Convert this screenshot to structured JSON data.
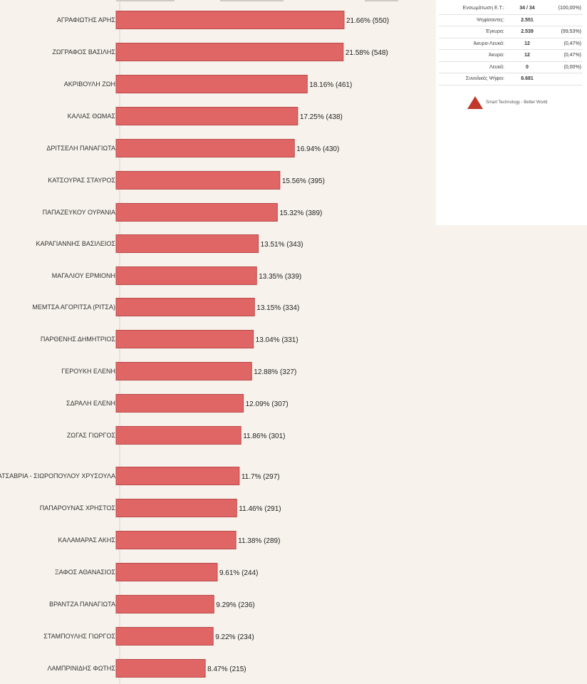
{
  "chart_data": {
    "type": "bar",
    "orientation": "horizontal",
    "categories": [
      "ΑΓΡΑΦΙΩΤΗΣ ΑΡΗΣ",
      "ΖΩΓΡΑΦΟΣ ΒΑΣΙΛΗΣ",
      "ΑΚΡΙΒΟΥΛΗ ΖΩΗ",
      "ΚΑΛΙΑΣ ΘΩΜΑΣ",
      "ΔΡΙΤΣΕΛΗ ΠΑΝΑΓΙΩΤΑ",
      "ΚΑΤΣΟΥΡΑΣ ΣΤΑΥΡΟΣ",
      "ΠΑΠΑΖΕΥΚΟΥ ΟΥΡΑΝΙΑ",
      "ΚΑΡΑΓΙΑΝΝΗΣ ΒΑΣΙΛΕΙΟΣ",
      "ΜΑΓΑΛΙΟΥ ΕΡΜΙΟΝΗ",
      "ΜΕΜΤΣΑ ΑΓΟΡΙΤΣΑ (ΡΙΤΣΑ)",
      "ΠΑΡΘΕΝΗΣ ΔΗΜΗΤΡΙΟΣ",
      "ΓΕΡΟΥΚΗ ΕΛΕΝΗ",
      "ΣΔΡΑΛΗ ΕΛΕΝΗ",
      "ΖΩΓΑΣ ΓΙΩΡΓΟΣ",
      "ΚΑΤΣΑΒΡΙΑ - ΣΙΩΡΟΠΟΥΛΟΥ ΧΡΥΣΟΥΛΑ",
      "ΠΑΠΑΡΟΥΝΑΣ ΧΡΗΣΤΟΣ",
      "ΚΑΛΑΜΑΡΑΣ ΑΚΗΣ",
      "ΞΑΦΟΣ ΑΘΑΝΑΣΙΟΣ",
      "ΒΡΑΝΤΖΑ ΠΑΝΑΓΙΩΤΑ",
      "ΣΤΑΜΠΟΥΛΗΣ ΓΙΩΡΓΟΣ",
      "ΛΑΜΠΡΙΝΙΔΗΣ ΦΩΤΗΣ"
    ],
    "values": [
      21.66,
      21.58,
      18.16,
      17.25,
      16.94,
      15.56,
      15.32,
      13.51,
      13.35,
      13.15,
      13.04,
      12.88,
      12.09,
      11.86,
      11.7,
      11.46,
      11.38,
      9.61,
      9.29,
      9.22,
      8.47
    ],
    "value_labels": [
      "21.66% (550)",
      "21.58% (548)",
      "18.16% (461)",
      "17.25% (438)",
      "16.94% (430)",
      "15.56% (395)",
      "15.32% (389)",
      "13.51% (343)",
      "13.35% (339)",
      "13.15% (334)",
      "13.04% (331)",
      "12.88% (327)",
      "12.09% (307)",
      "11.86% (301)",
      "11.7% (297)",
      "11.46% (291)",
      "11.38% (289)",
      "9.61% (244)",
      "9.29% (236)",
      "9.22% (234)",
      "8.47% (215)"
    ],
    "bar_color": "#e06666",
    "xlim": [
      0,
      25
    ],
    "grid": false,
    "legend": "none"
  },
  "stats": {
    "rows": [
      {
        "label": "Ενσωμάτωση Ε.Τ.:",
        "value": "34 / 34",
        "pct": "(100,00%)"
      },
      {
        "label": "Ψηφίσαντες:",
        "value": "2.551",
        "pct": ""
      },
      {
        "label": "Έγκυρα:",
        "value": "2.539",
        "pct": "(99,53%)"
      },
      {
        "label": "Άκυρα-Λευκά:",
        "value": "12",
        "pct": "(0,47%)"
      },
      {
        "label": "Άκυρα:",
        "value": "12",
        "pct": "(0,47%)"
      },
      {
        "label": "Λευκά:",
        "value": "0",
        "pct": "(0,00%)"
      },
      {
        "label": "Συνολικές Ψήφοι:",
        "value": "8.681",
        "pct": ""
      }
    ],
    "logo_text": "Smart Technology - Better World",
    "logo_icon": "sts-logo-icon"
  }
}
